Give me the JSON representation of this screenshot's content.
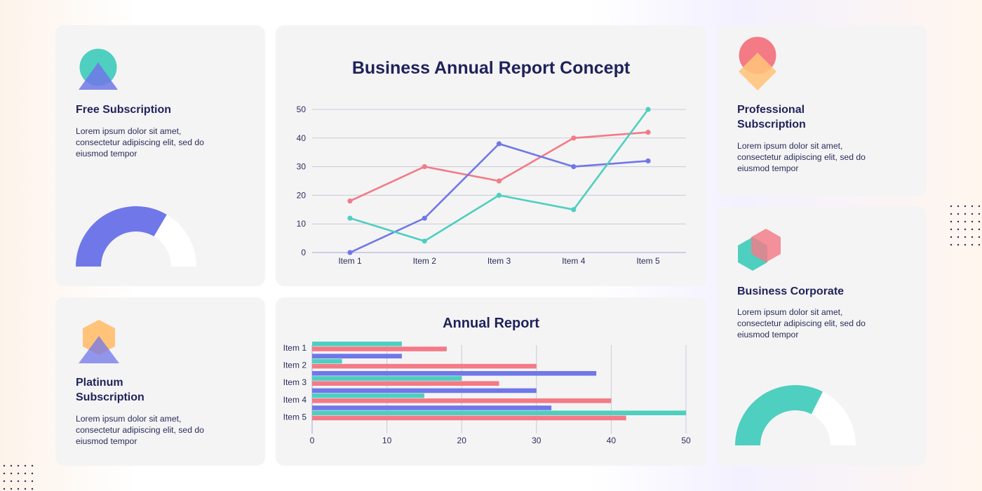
{
  "colors": {
    "card_bg": "#f4f4f5",
    "navy": "#1f2259",
    "blue": "#7077e8",
    "teal": "#4ecfbf",
    "pink": "#f47a86",
    "orange": "#ffc37a",
    "grid": "#c9cbd6"
  },
  "cards": {
    "free": {
      "title": "Free Subscription",
      "text": "Lorem ipsum dolor sit amet, consectetur adipiscing elit, sed do eiusmod tempor",
      "icon": "circle-triangle-icon"
    },
    "platinum": {
      "title": "Platinum\nSubscription",
      "text": "Lorem ipsum dolor sit amet, consectetur adipiscing elit, sed do eiusmod tempor",
      "icon": "hexagon-triangle-icon"
    },
    "professional": {
      "title": "Professional\nSubscription",
      "text": "Lorem ipsum dolor sit amet, consectetur adipiscing elit, sed do eiusmod tempor",
      "icon": "circle-diamond-icon"
    },
    "business": {
      "title": "Business Corporate",
      "text": "Lorem ipsum dolor sit amet, consectetur adipiscing elit, sed do eiusmod tempor",
      "icon": "double-hexagon-icon"
    }
  },
  "gauges": {
    "free": {
      "fill_fraction": 0.67,
      "color": "#7077e8"
    },
    "business": {
      "fill_fraction": 0.65,
      "color": "#4ecfbf"
    }
  },
  "chart_data": [
    {
      "type": "line",
      "title": "Business Annual Report Concept",
      "categories": [
        "Item 1",
        "Item 2",
        "Item 3",
        "Item 4",
        "Item 5"
      ],
      "ylim": [
        0,
        50
      ],
      "yticks": [
        0,
        10,
        20,
        30,
        40,
        50
      ],
      "grid": true,
      "series": [
        {
          "color": "#f47a86",
          "values": [
            18,
            30,
            25,
            40,
            42
          ]
        },
        {
          "color": "#7077e8",
          "values": [
            0,
            12,
            38,
            30,
            32
          ]
        },
        {
          "color": "#4ecfbf",
          "values": [
            12,
            4,
            20,
            15,
            50
          ]
        }
      ]
    },
    {
      "type": "bar",
      "orientation": "horizontal",
      "title": "Annual Report",
      "categories": [
        "Item 1",
        "Item 2",
        "Item 3",
        "Item 4",
        "Item 5"
      ],
      "xlim": [
        0,
        50
      ],
      "xticks": [
        0,
        10,
        20,
        30,
        40,
        50
      ],
      "grid": true,
      "series": [
        {
          "color": "#7077e8",
          "values": [
            0,
            12,
            38,
            30,
            32
          ]
        },
        {
          "color": "#4ecfbf",
          "values": [
            12,
            4,
            20,
            15,
            50
          ]
        },
        {
          "color": "#f47a86",
          "values": [
            18,
            30,
            25,
            40,
            42
          ]
        }
      ]
    }
  ]
}
